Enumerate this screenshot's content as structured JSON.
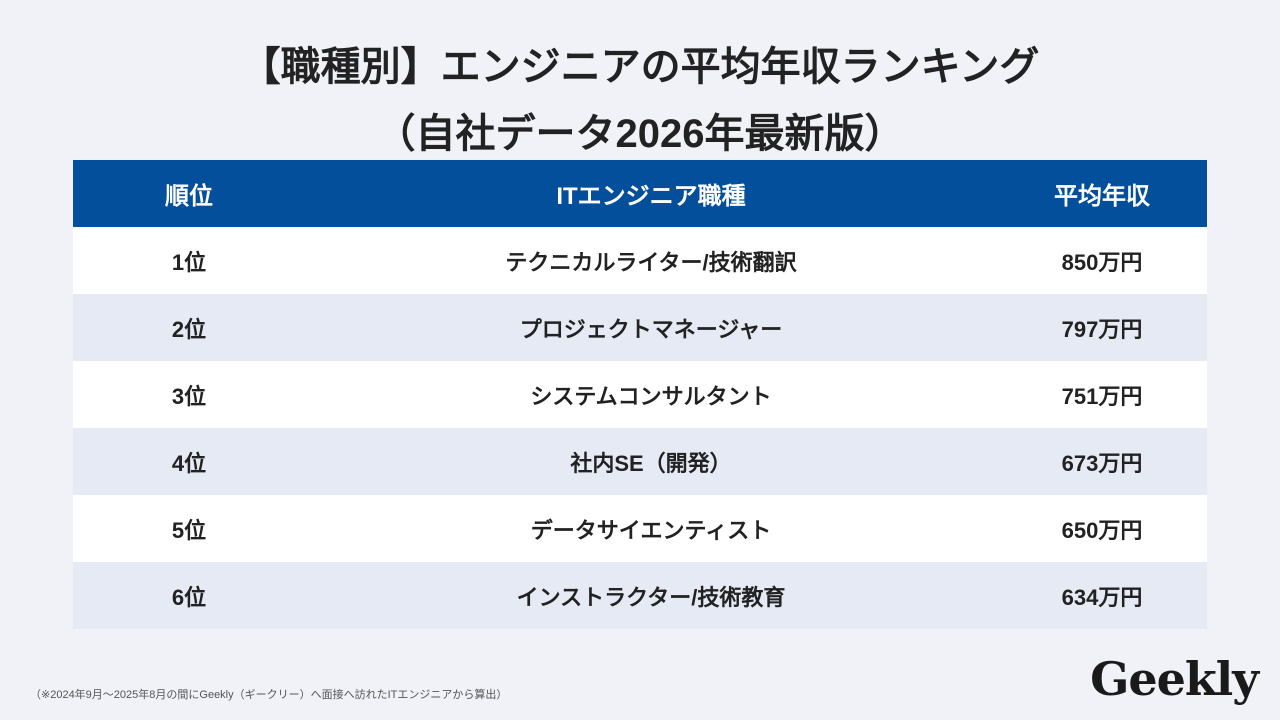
{
  "header": {
    "title_line1": "【職種別】エンジニアの平均年収ランキング",
    "title_line2": "（自社データ2026年最新版）"
  },
  "table": {
    "columns": [
      "順位",
      "ITエンジニア職種",
      "平均年収"
    ],
    "rows": [
      [
        "1位",
        "テクニカルライター/技術翻訳",
        "850万円"
      ],
      [
        "2位",
        "プロジェクトマネージャー",
        "797万円"
      ],
      [
        "3位",
        "システムコンサルタント",
        "751万円"
      ],
      [
        "4位",
        "社内SE（開発）",
        "673万円"
      ],
      [
        "5位",
        "データサイエンティスト",
        "650万円"
      ],
      [
        "6位",
        "インストラクター/技術教育",
        "634万円"
      ]
    ]
  },
  "footnote": "（※2024年9月～2025年8月の間にGeekly（ギークリー）へ面接へ訪れたITエンジニアから算出）",
  "logo": "Geekly"
}
